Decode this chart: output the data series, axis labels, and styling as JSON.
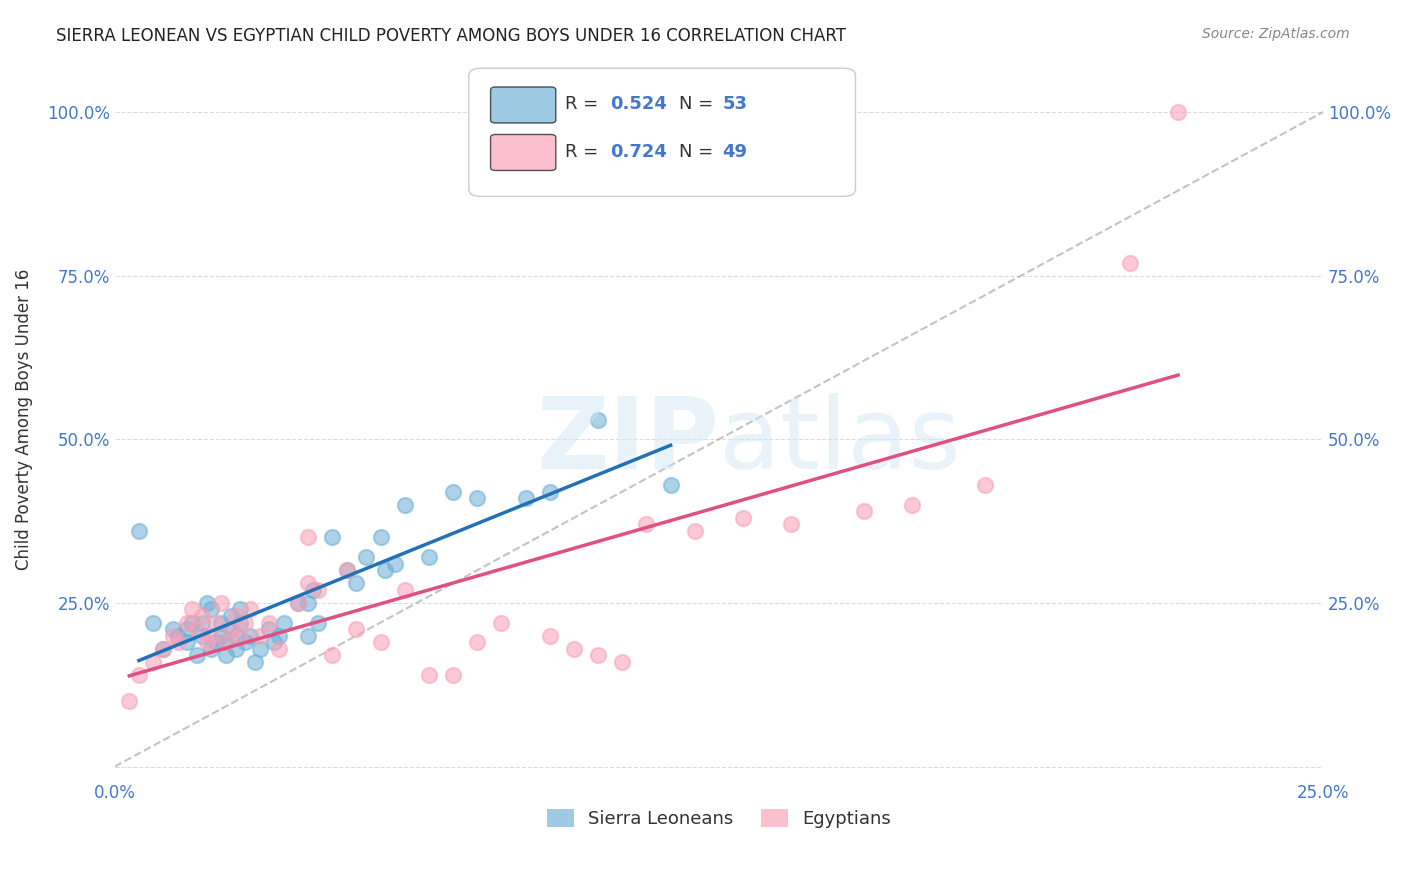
{
  "title": "SIERRA LEONEAN VS EGYPTIAN CHILD POVERTY AMONG BOYS UNDER 16 CORRELATION CHART",
  "source": "Source: ZipAtlas.com",
  "ylabel": "Child Poverty Among Boys Under 16",
  "xlim": [
    0.0,
    0.25
  ],
  "ylim": [
    -0.02,
    1.08
  ],
  "x_ticks": [
    0.0,
    0.05,
    0.1,
    0.15,
    0.2,
    0.25
  ],
  "x_tick_labels": [
    "0.0%",
    "",
    "",
    "",
    "",
    "25.0%"
  ],
  "y_ticks": [
    0.0,
    0.25,
    0.5,
    0.75,
    1.0
  ],
  "y_tick_labels": [
    "",
    "25.0%",
    "50.0%",
    "75.0%",
    "100.0%"
  ],
  "sierra_R": 0.524,
  "sierra_N": 53,
  "egypt_R": 0.724,
  "egypt_N": 49,
  "sierra_color": "#6baed6",
  "egypt_color": "#fa9fb5",
  "sierra_line_color": "#2171b5",
  "egypt_line_color": "#e05080",
  "ref_line_color": "#aaaaaa",
  "background_color": "#ffffff",
  "grid_color": "#cccccc",
  "title_color": "#222222",
  "axis_label_color": "#333333",
  "tick_label_color": "#4477cc",
  "sierra_x": [
    0.005,
    0.008,
    0.01,
    0.012,
    0.013,
    0.015,
    0.015,
    0.016,
    0.017,
    0.018,
    0.018,
    0.019,
    0.02,
    0.02,
    0.021,
    0.022,
    0.022,
    0.023,
    0.023,
    0.024,
    0.024,
    0.025,
    0.025,
    0.026,
    0.026,
    0.027,
    0.028,
    0.029,
    0.03,
    0.032,
    0.033,
    0.034,
    0.035,
    0.038,
    0.04,
    0.04,
    0.041,
    0.042,
    0.045,
    0.048,
    0.05,
    0.052,
    0.055,
    0.056,
    0.058,
    0.06,
    0.065,
    0.07,
    0.075,
    0.085,
    0.09,
    0.1,
    0.115
  ],
  "sierra_y": [
    0.36,
    0.22,
    0.18,
    0.21,
    0.2,
    0.19,
    0.21,
    0.22,
    0.17,
    0.2,
    0.22,
    0.25,
    0.18,
    0.24,
    0.19,
    0.2,
    0.22,
    0.17,
    0.19,
    0.21,
    0.23,
    0.18,
    0.2,
    0.22,
    0.24,
    0.19,
    0.2,
    0.16,
    0.18,
    0.21,
    0.19,
    0.2,
    0.22,
    0.25,
    0.2,
    0.25,
    0.27,
    0.22,
    0.35,
    0.3,
    0.28,
    0.32,
    0.35,
    0.3,
    0.31,
    0.4,
    0.32,
    0.42,
    0.41,
    0.41,
    0.42,
    0.53,
    0.43
  ],
  "egypt_x": [
    0.003,
    0.005,
    0.008,
    0.01,
    0.012,
    0.013,
    0.015,
    0.016,
    0.017,
    0.018,
    0.019,
    0.02,
    0.021,
    0.022,
    0.023,
    0.024,
    0.025,
    0.026,
    0.027,
    0.028,
    0.03,
    0.032,
    0.034,
    0.038,
    0.04,
    0.04,
    0.042,
    0.045,
    0.048,
    0.05,
    0.055,
    0.06,
    0.065,
    0.07,
    0.075,
    0.08,
    0.09,
    0.095,
    0.1,
    0.105,
    0.11,
    0.12,
    0.13,
    0.14,
    0.155,
    0.165,
    0.18,
    0.21,
    0.22
  ],
  "egypt_y": [
    0.1,
    0.14,
    0.16,
    0.18,
    0.2,
    0.19,
    0.22,
    0.24,
    0.21,
    0.23,
    0.19,
    0.2,
    0.22,
    0.25,
    0.19,
    0.21,
    0.23,
    0.2,
    0.22,
    0.24,
    0.2,
    0.22,
    0.18,
    0.25,
    0.28,
    0.35,
    0.27,
    0.17,
    0.3,
    0.21,
    0.19,
    0.27,
    0.14,
    0.14,
    0.19,
    0.22,
    0.2,
    0.18,
    0.17,
    0.16,
    0.37,
    0.36,
    0.38,
    0.37,
    0.39,
    0.4,
    0.43,
    0.77,
    1.0
  ]
}
